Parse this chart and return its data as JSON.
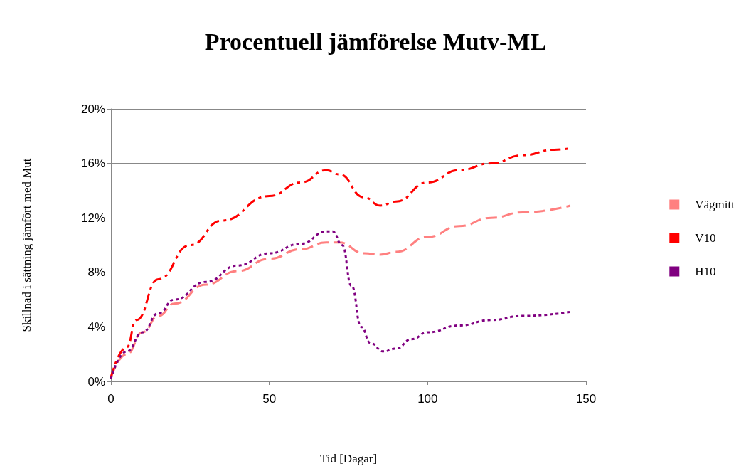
{
  "chart_data": {
    "type": "line",
    "title": "Procentuell jämförelse Mutv-ML",
    "xlabel": "Tid [Dagar]",
    "ylabel": "Skillnad i sättning jämfört med Mut",
    "xlim": [
      0,
      150
    ],
    "xticks": [
      0,
      50,
      100,
      150
    ],
    "ylim": [
      0,
      20
    ],
    "yticks": [
      {
        "value": 0,
        "label": "0%"
      },
      {
        "value": 4,
        "label": "4%"
      },
      {
        "value": 8,
        "label": "8%"
      },
      {
        "value": 12,
        "label": "12%"
      },
      {
        "value": 16,
        "label": "16%"
      },
      {
        "value": 20,
        "label": "20%"
      }
    ],
    "grid": "y",
    "legend": "right",
    "marker": "none",
    "series": [
      {
        "name": "Vägmitt",
        "color": "#ff8080",
        "line_style": "dashed",
        "x": [
          0,
          5,
          10,
          15,
          20,
          30,
          40,
          50,
          60,
          68,
          72,
          80,
          85,
          90,
          100,
          110,
          120,
          130,
          145
        ],
        "values": [
          0.3,
          2,
          3.6,
          4.8,
          5.7,
          7.1,
          8.1,
          9,
          9.7,
          10.2,
          10.2,
          9.4,
          9.3,
          9.5,
          10.6,
          11.4,
          12,
          12.4,
          12.9
        ]
      },
      {
        "name": "V10",
        "color": "#ff0000",
        "line_style": "dashdot",
        "x": [
          0,
          5,
          8,
          15,
          25,
          35,
          50,
          60,
          68,
          72,
          80,
          85,
          90,
          100,
          110,
          120,
          130,
          140,
          145
        ],
        "values": [
          0.3,
          2.5,
          4.5,
          7.5,
          10,
          11.8,
          13.6,
          14.6,
          15.5,
          15.2,
          13.5,
          12.9,
          13.2,
          14.6,
          15.5,
          16,
          16.6,
          17,
          17.1
        ]
      },
      {
        "name": "H10",
        "color": "#800080",
        "line_style": "dotted",
        "x": [
          0,
          5,
          10,
          15,
          20,
          30,
          40,
          50,
          60,
          68,
          70,
          73,
          76,
          79,
          82,
          86,
          90,
          95,
          100,
          110,
          120,
          130,
          145
        ],
        "values": [
          0.2,
          2.2,
          3.6,
          5,
          6,
          7.3,
          8.5,
          9.4,
          10.1,
          11,
          11,
          10,
          7,
          4,
          2.8,
          2.2,
          2.4,
          3.1,
          3.6,
          4.1,
          4.5,
          4.8,
          5.1
        ]
      }
    ]
  }
}
